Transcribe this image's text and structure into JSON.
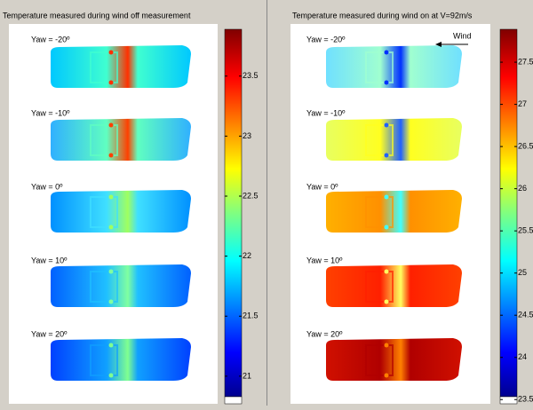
{
  "panels": [
    {
      "title": "Temperature measured during wind off measurement",
      "yaw_labels": [
        "Yaw = -20º",
        "Yaw = -10º",
        "Yaw = 0º",
        "Yaw = 10º",
        "Yaw = 20º"
      ],
      "colorbar": {
        "lim": [
          20.77,
          23.89
        ],
        "ticks": [
          21,
          21.5,
          22,
          22.5,
          23,
          23.5
        ]
      }
    },
    {
      "title": "Temperature measured during wind on at V=92m/s",
      "annotation": "Wind",
      "yaw_labels": [
        "Yaw = -20º",
        "Yaw = -10º",
        "Yaw = 0º",
        "Yaw = 10º",
        "Yaw = 20º"
      ],
      "colorbar": {
        "lim": [
          23.45,
          27.89
        ],
        "ticks": [
          23.5,
          24,
          24.5,
          25,
          25.5,
          26,
          26.5,
          27,
          27.5
        ]
      }
    }
  ]
}
